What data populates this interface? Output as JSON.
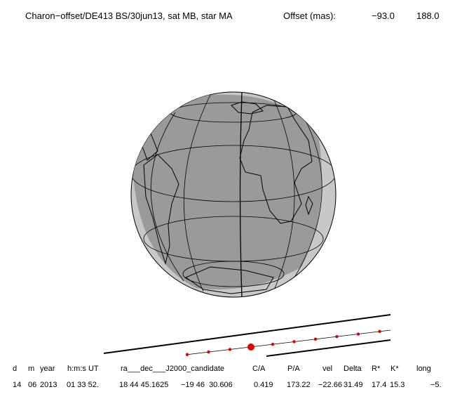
{
  "header": {
    "title": "Charon−offset/DE413 BS/30jun13, sat MB, star MA",
    "offset_label": "Offset (mas):",
    "offset_values": [
      "−93.0",
      "188.0"
    ]
  },
  "table": {
    "headers": [
      "d",
      "m",
      "year",
      "h:m:s UT",
      "ra___dec___J2000_candidate",
      "C/A",
      "P/A",
      "vel",
      "Delta",
      "R*",
      "K*",
      "long"
    ],
    "values": [
      "14",
      "06",
      "2013",
      "01 33 52.",
      "18 44 45.1625",
      "−19 46  30.606",
      "0.419",
      "173.22",
      "−22.66",
      "31.49",
      "17.4",
      "15.3",
      "−5."
    ]
  }
}
